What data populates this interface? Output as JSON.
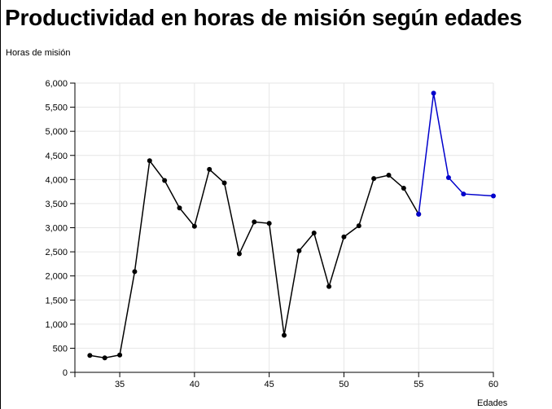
{
  "chart_data": {
    "type": "line",
    "title": "Productividad en horas de misión según edades",
    "xlabel": "Edades",
    "ylabel": "Horas de misión",
    "xlim": [
      32,
      60
    ],
    "ylim": [
      0,
      6000
    ],
    "x_ticks": [
      35,
      40,
      45,
      50,
      55,
      60
    ],
    "y_ticks": [
      0,
      500,
      1000,
      1500,
      2000,
      2500,
      3000,
      3500,
      4000,
      4500,
      5000,
      5500,
      6000
    ],
    "y_tick_labels": [
      "0",
      "500",
      "1,000",
      "1,500",
      "2,000",
      "2,500",
      "3,000",
      "3,500",
      "4,000",
      "4,500",
      "5,000",
      "5,500",
      "6,000"
    ],
    "grid": true,
    "series": [
      {
        "color": "#000000",
        "x": [
          33,
          34,
          35,
          36,
          37,
          38,
          39,
          40,
          41,
          42,
          43,
          44,
          45,
          46,
          47,
          48,
          49,
          50,
          51,
          52,
          53,
          54,
          55
        ],
        "values": [
          350,
          300,
          360,
          2090,
          4390,
          3980,
          3410,
          3030,
          4210,
          3930,
          2460,
          3120,
          3090,
          770,
          2520,
          2890,
          1780,
          2810,
          3040,
          4020,
          4090,
          3820,
          3280
        ]
      },
      {
        "color": "#0000cc",
        "x": [
          55,
          56,
          57,
          58,
          60
        ],
        "values": [
          3280,
          5790,
          4040,
          3700,
          3660
        ]
      }
    ]
  }
}
